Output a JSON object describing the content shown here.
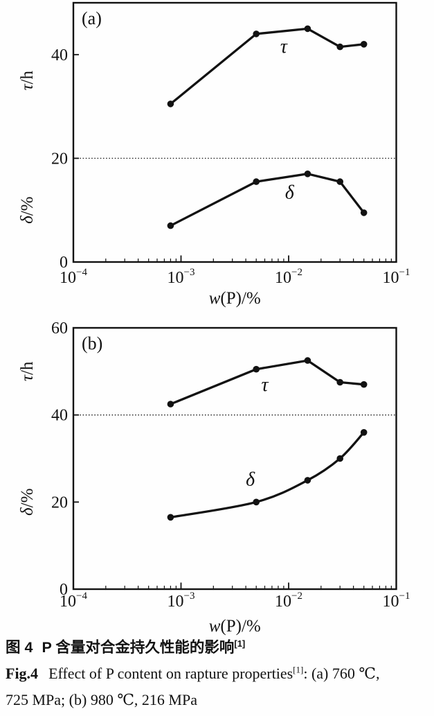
{
  "figure": {
    "background": "#fefefe",
    "ink": "#121212"
  },
  "chart_data": [
    {
      "type": "line",
      "panel_label": "(a)",
      "xscale": "log",
      "xlim": [
        0.0001,
        0.1
      ],
      "xlabel_parts": [
        {
          "t": "w",
          "italic": true
        },
        {
          "t": "(P)/%",
          "italic": false
        }
      ],
      "x_ticks": [
        {
          "value": 0.0001,
          "base": "10",
          "exp": "−4"
        },
        {
          "value": 0.001,
          "base": "10",
          "exp": "−3"
        },
        {
          "value": 0.01,
          "base": "10",
          "exp": "−2"
        },
        {
          "value": 0.1,
          "base": "10",
          "exp": "−1"
        }
      ],
      "ylim": [
        0,
        50
      ],
      "y_ticks": [
        {
          "value": 0,
          "label": "0"
        },
        {
          "value": 20,
          "label": "20"
        },
        {
          "value": 40,
          "label": "40"
        }
      ],
      "divider_y": 20,
      "grid": "divider-dotted-only",
      "y_label_upper_parts": [
        {
          "t": "τ",
          "italic": true
        },
        {
          "t": "/h",
          "italic": false
        }
      ],
      "y_label_lower_parts": [
        {
          "t": "δ",
          "italic": true
        },
        {
          "t": "/%",
          "italic": false
        }
      ],
      "x": [
        0.0008,
        0.005,
        0.015,
        0.03,
        0.05
      ],
      "series": [
        {
          "id": "tau",
          "name": "τ",
          "curve": "linear",
          "values": [
            30.5,
            44,
            45,
            41.5,
            42
          ],
          "label_at": {
            "x": 0.009,
            "y": 40.4
          }
        },
        {
          "id": "delta",
          "name": "δ",
          "curve": "linear",
          "values": [
            7,
            15.5,
            17,
            15.5,
            9.5
          ],
          "label_at": {
            "x": 0.0102,
            "y": 12.2
          }
        }
      ]
    },
    {
      "type": "line",
      "panel_label": "(b)",
      "xscale": "log",
      "xlim": [
        0.0001,
        0.1
      ],
      "xlabel_parts": [
        {
          "t": "w",
          "italic": true
        },
        {
          "t": "(P)/%",
          "italic": false
        }
      ],
      "x_ticks": [
        {
          "value": 0.0001,
          "base": "10",
          "exp": "−4"
        },
        {
          "value": 0.001,
          "base": "10",
          "exp": "−3"
        },
        {
          "value": 0.01,
          "base": "10",
          "exp": "−2"
        },
        {
          "value": 0.1,
          "base": "10",
          "exp": "−1"
        }
      ],
      "ylim": [
        0,
        60
      ],
      "y_ticks": [
        {
          "value": 0,
          "label": "0"
        },
        {
          "value": 20,
          "label": "20"
        },
        {
          "value": 40,
          "label": "40"
        },
        {
          "value": 60,
          "label": "60"
        }
      ],
      "divider_y": 40,
      "grid": "divider-dotted-only",
      "y_label_upper_parts": [
        {
          "t": "τ",
          "italic": true
        },
        {
          "t": "/h",
          "italic": false
        }
      ],
      "y_label_lower_parts": [
        {
          "t": "δ",
          "italic": true
        },
        {
          "t": "/%",
          "italic": false
        }
      ],
      "x": [
        0.0008,
        0.005,
        0.015,
        0.03,
        0.05
      ],
      "series": [
        {
          "id": "tau",
          "name": "τ",
          "curve": "linear",
          "values": [
            42.5,
            50.5,
            52.5,
            47.5,
            47
          ],
          "label_at": {
            "x": 0.006,
            "y": 45.5
          }
        },
        {
          "id": "delta",
          "name": "δ",
          "curve": "smooth",
          "values": [
            16.5,
            20,
            25,
            30,
            36
          ],
          "label_at": {
            "x": 0.0044,
            "y": 23.8
          }
        }
      ]
    }
  ],
  "caption": {
    "cn": {
      "fig_label": "图 4",
      "text": "P 含量对合金持久性能的影响",
      "ref": "[1]"
    },
    "en": {
      "fig_label": "Fig.4",
      "text": "Effect of P content on rapture properties",
      "ref": "[1]",
      "tail": ": (a) 760 ℃,",
      "line2": "725 MPa; (b) 980 ℃, 216 MPa"
    }
  }
}
